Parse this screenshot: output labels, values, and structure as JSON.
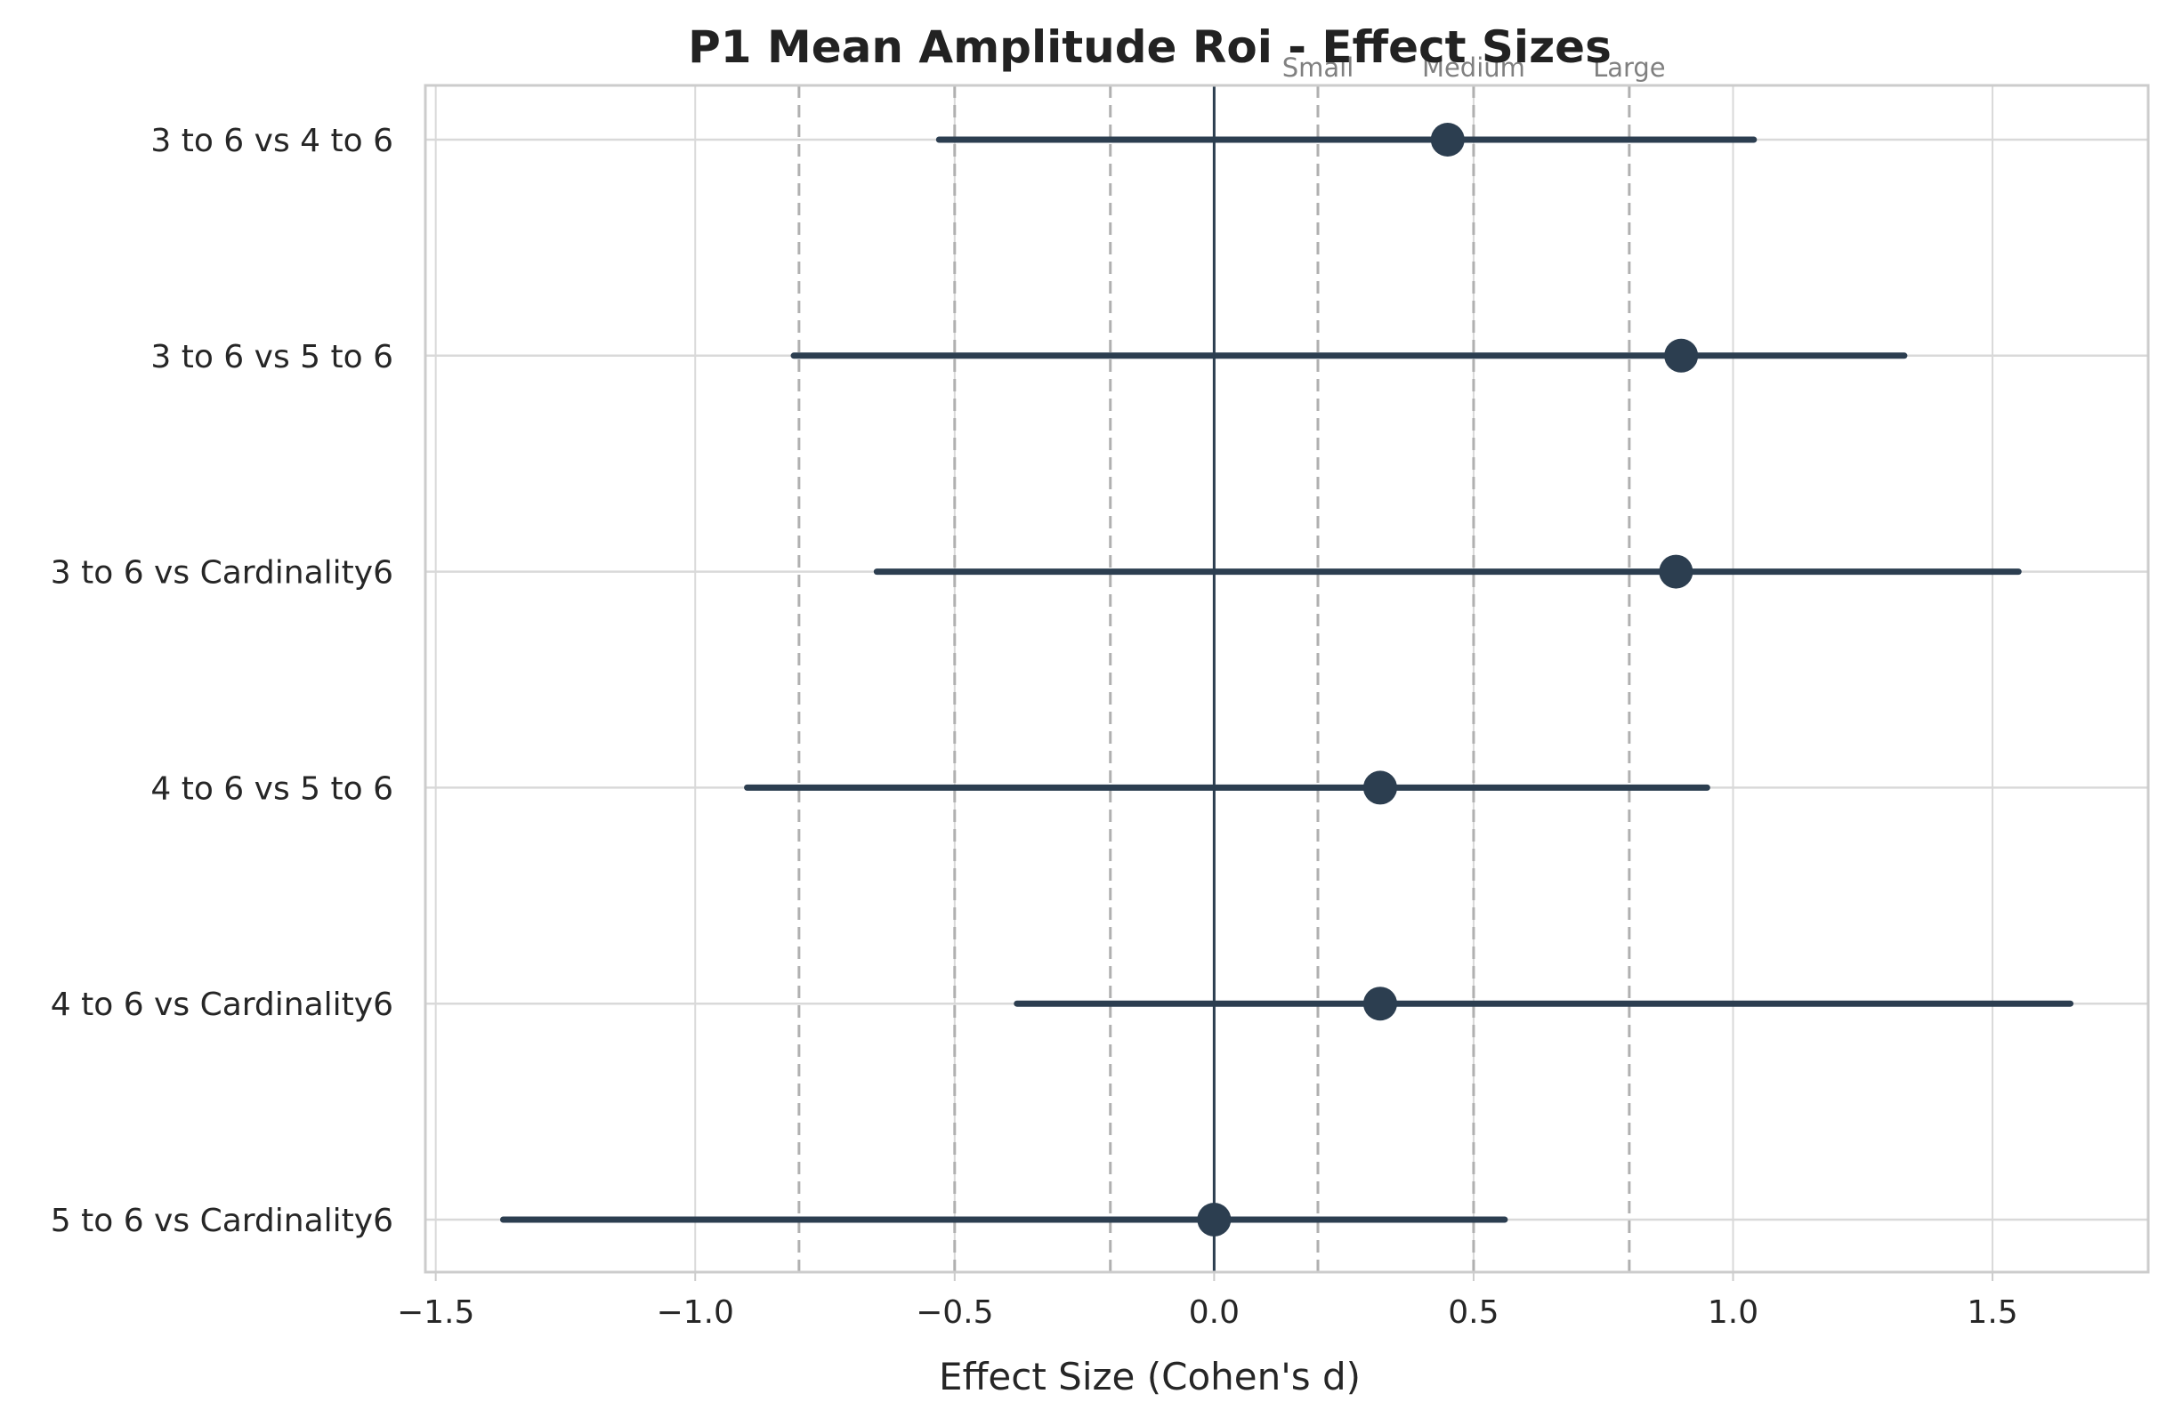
{
  "chart_data": {
    "type": "forest",
    "title": "P1 Mean Amplitude Roi - Effect Sizes",
    "xlabel": "Effect Size (Cohen's d)",
    "ylabel": "",
    "xlim": [
      -1.52,
      1.8
    ],
    "xticks": [
      -1.5,
      -1.0,
      -0.5,
      0.0,
      0.5,
      1.0,
      1.5
    ],
    "xtick_labels": [
      "−1.5",
      "−1.0",
      "−0.5",
      "0.0",
      "0.5",
      "1.0",
      "1.5"
    ],
    "grid": true,
    "zero_line": 0.0,
    "reference_lines": [
      {
        "x": -0.8,
        "label": ""
      },
      {
        "x": -0.5,
        "label": ""
      },
      {
        "x": -0.2,
        "label": ""
      },
      {
        "x": 0.2,
        "label": "Small"
      },
      {
        "x": 0.5,
        "label": "Medium"
      },
      {
        "x": 0.8,
        "label": "Large"
      }
    ],
    "comparisons": [
      {
        "label": "5 to 6 vs Cardinality6",
        "d": 0.0,
        "ci_low": -1.37,
        "ci_high": 0.56
      },
      {
        "label": "4 to 6 vs Cardinality6",
        "d": 0.32,
        "ci_low": -0.38,
        "ci_high": 1.65
      },
      {
        "label": "4 to 6 vs 5 to 6",
        "d": 0.32,
        "ci_low": -0.9,
        "ci_high": 0.95
      },
      {
        "label": "3 to 6 vs Cardinality6",
        "d": 0.89,
        "ci_low": -0.65,
        "ci_high": 1.55
      },
      {
        "label": "3 to 6 vs 5 to 6",
        "d": 0.9,
        "ci_low": -0.81,
        "ci_high": 1.33
      },
      {
        "label": "3 to 6 vs 4 to 6",
        "d": 0.45,
        "ci_low": -0.53,
        "ci_high": 1.04
      }
    ],
    "colors": {
      "marker": "#2c3e50",
      "zero_line": "#2c3e50",
      "reference": "#b0b0b0",
      "grid": "#d9d9d9",
      "spine": "#cccccc"
    }
  }
}
